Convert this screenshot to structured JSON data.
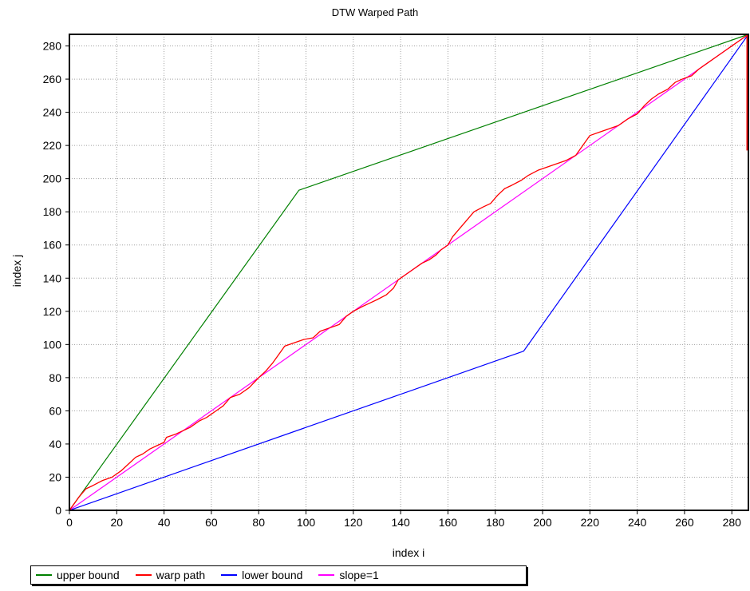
{
  "chart_data": {
    "type": "line",
    "title": "DTW Warped Path",
    "xlabel": "index i",
    "ylabel": "index j",
    "xlim": [
      0,
      287
    ],
    "ylim": [
      0,
      287
    ],
    "x_ticks": [
      0,
      20,
      40,
      60,
      80,
      100,
      120,
      140,
      160,
      180,
      200,
      220,
      240,
      260,
      280
    ],
    "y_ticks": [
      0,
      20,
      40,
      60,
      80,
      100,
      120,
      140,
      160,
      180,
      200,
      220,
      240,
      260,
      280
    ],
    "grid": true,
    "legend_position": "bottom-left",
    "series": [
      {
        "name": "upper bound",
        "color": "#008000",
        "points": [
          [
            0,
            0
          ],
          [
            97,
            193
          ],
          [
            287,
            287
          ]
        ]
      },
      {
        "name": "warp path",
        "color": "#ff0000",
        "points": [
          [
            0,
            0
          ],
          [
            2,
            4
          ],
          [
            4,
            8
          ],
          [
            7,
            13
          ],
          [
            10,
            15
          ],
          [
            14,
            18
          ],
          [
            18,
            20
          ],
          [
            22,
            24
          ],
          [
            25,
            28
          ],
          [
            28,
            32
          ],
          [
            31,
            34
          ],
          [
            34,
            37
          ],
          [
            37,
            39
          ],
          [
            40,
            41
          ],
          [
            41,
            44
          ],
          [
            45,
            46
          ],
          [
            48,
            48
          ],
          [
            51,
            50
          ],
          [
            55,
            54
          ],
          [
            58,
            56
          ],
          [
            61,
            59
          ],
          [
            65,
            63
          ],
          [
            68,
            68
          ],
          [
            72,
            70
          ],
          [
            76,
            74
          ],
          [
            80,
            80
          ],
          [
            83,
            84
          ],
          [
            86,
            89
          ],
          [
            89,
            95
          ],
          [
            91,
            99
          ],
          [
            95,
            101
          ],
          [
            99,
            103
          ],
          [
            103,
            104
          ],
          [
            106,
            108
          ],
          [
            110,
            110
          ],
          [
            114,
            112
          ],
          [
            117,
            117
          ],
          [
            120,
            120
          ],
          [
            124,
            123
          ],
          [
            127,
            125
          ],
          [
            130,
            127
          ],
          [
            134,
            130
          ],
          [
            137,
            134
          ],
          [
            139,
            139
          ],
          [
            142,
            142
          ],
          [
            145,
            145
          ],
          [
            149,
            149
          ],
          [
            152,
            151
          ],
          [
            155,
            154
          ],
          [
            157,
            157
          ],
          [
            160,
            160
          ],
          [
            162,
            165
          ],
          [
            165,
            170
          ],
          [
            168,
            175
          ],
          [
            171,
            180
          ],
          [
            175,
            183
          ],
          [
            178,
            185
          ],
          [
            181,
            190
          ],
          [
            184,
            194
          ],
          [
            187,
            196
          ],
          [
            191,
            199
          ],
          [
            194,
            202
          ],
          [
            198,
            205
          ],
          [
            202,
            207
          ],
          [
            206,
            209
          ],
          [
            210,
            211
          ],
          [
            214,
            214
          ],
          [
            217,
            220
          ],
          [
            220,
            226
          ],
          [
            224,
            228
          ],
          [
            228,
            230
          ],
          [
            232,
            232
          ],
          [
            236,
            236
          ],
          [
            240,
            239
          ],
          [
            243,
            244
          ],
          [
            246,
            248
          ],
          [
            249,
            251
          ],
          [
            253,
            254
          ],
          [
            256,
            258
          ],
          [
            259,
            260
          ],
          [
            263,
            262
          ],
          [
            266,
            266
          ],
          [
            270,
            270
          ],
          [
            274,
            274
          ],
          [
            277,
            277
          ],
          [
            281,
            281
          ],
          [
            284,
            284
          ],
          [
            287,
            287
          ],
          [
            287,
            217
          ]
        ]
      },
      {
        "name": "lower bound",
        "color": "#0000ff",
        "points": [
          [
            0,
            0
          ],
          [
            192,
            96
          ],
          [
            287,
            287
          ]
        ]
      },
      {
        "name": "slope=1",
        "color": "#ff00ff",
        "points": [
          [
            0,
            0
          ],
          [
            287,
            287
          ]
        ]
      }
    ]
  }
}
